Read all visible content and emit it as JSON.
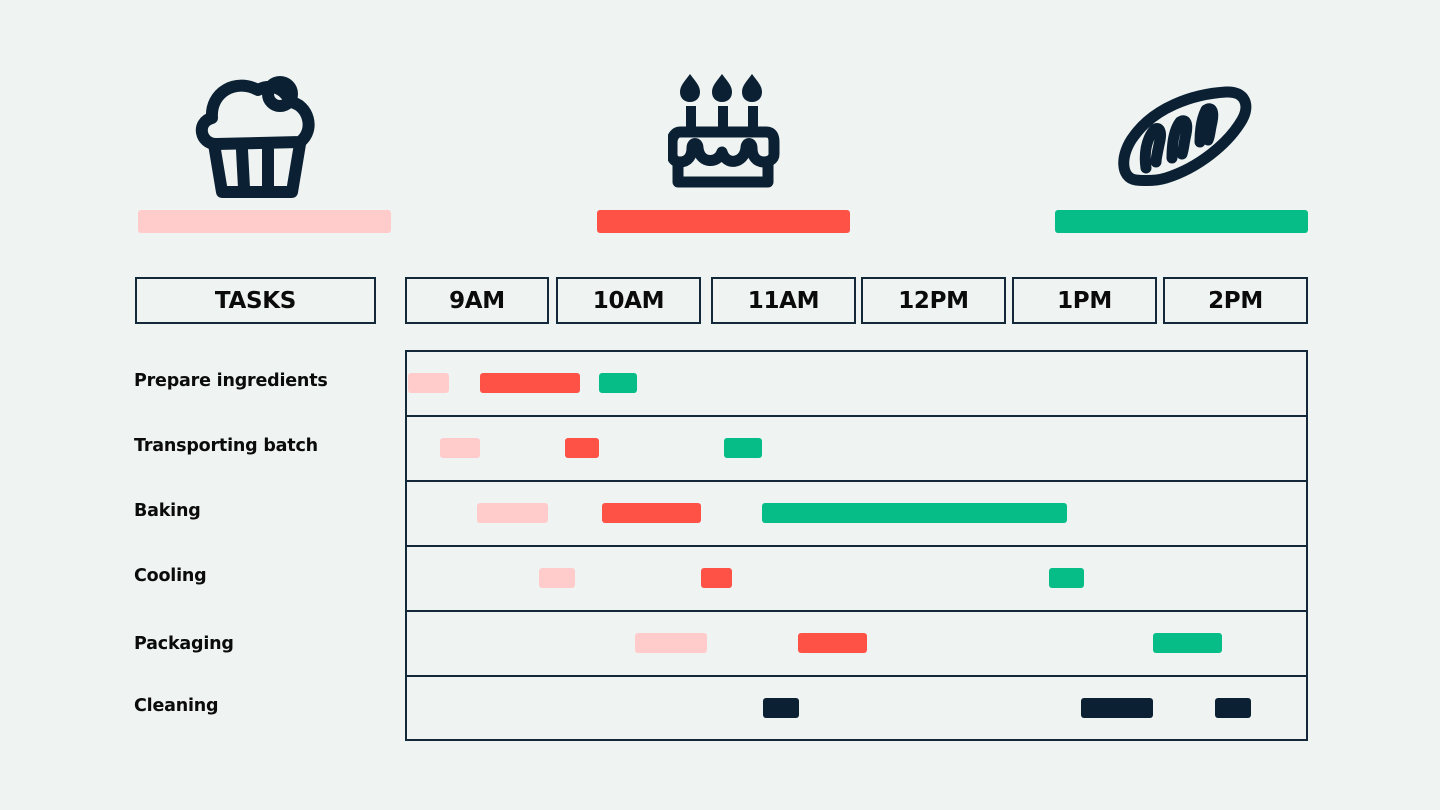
{
  "colors": {
    "background": "#eff3f2",
    "outline": "#13293a",
    "cupcake": "#ffcccb",
    "cake": "#ff5247",
    "bread": "#06bd88",
    "cleaning": "#0b2133"
  },
  "legend": [
    {
      "icon": "cupcake-icon",
      "color": "#ffcccb",
      "series": "Cupcakes"
    },
    {
      "icon": "birthday-cake-icon",
      "color": "#ff5247",
      "series": "Cakes"
    },
    {
      "icon": "bread-icon",
      "color": "#06bd88",
      "series": "Bread"
    }
  ],
  "header": {
    "tasks_label": "TASKS",
    "hours": [
      "9AM",
      "10AM",
      "11AM",
      "12PM",
      "1PM",
      "2PM"
    ]
  },
  "tasks": [
    "Prepare ingredients",
    "Transporting batch",
    "Baking",
    "Cooling",
    "Packaging",
    "Cleaning"
  ],
  "chart_data": {
    "type": "gantt",
    "title": "",
    "xlabel": "",
    "ylabel": "TASKS",
    "x_ticks": [
      "9AM",
      "10AM",
      "11AM",
      "12PM",
      "1PM",
      "2PM"
    ],
    "x_range_hours_from_9am": [
      0,
      6
    ],
    "categories": [
      "Prepare ingredients",
      "Transporting batch",
      "Baking",
      "Cooling",
      "Packaging",
      "Cleaning"
    ],
    "legend_position": "top (icons with color bars)",
    "series": [
      {
        "name": "Cupcakes",
        "color": "#ffcccb",
        "bars": [
          {
            "task": "Prepare ingredients",
            "start": 0.02,
            "end": 0.29
          },
          {
            "task": "Transporting batch",
            "start": 0.23,
            "end": 0.5
          },
          {
            "task": "Baking",
            "start": 0.48,
            "end": 0.95
          },
          {
            "task": "Cooling",
            "start": 0.89,
            "end": 1.13
          },
          {
            "task": "Packaging",
            "start": 1.53,
            "end": 2.01
          }
        ]
      },
      {
        "name": "Cakes",
        "color": "#ff5247",
        "bars": [
          {
            "task": "Prepare ingredients",
            "start": 0.5,
            "end": 1.16
          },
          {
            "task": "Transporting batch",
            "start": 1.06,
            "end": 1.29
          },
          {
            "task": "Baking",
            "start": 1.31,
            "end": 1.97
          },
          {
            "task": "Cooling",
            "start": 1.97,
            "end": 2.17
          },
          {
            "task": "Packaging",
            "start": 2.61,
            "end": 3.07
          }
        ]
      },
      {
        "name": "Bread",
        "color": "#06bd88",
        "bars": [
          {
            "task": "Prepare ingredients",
            "start": 1.29,
            "end": 1.54
          },
          {
            "task": "Transporting batch",
            "start": 2.12,
            "end": 2.37
          },
          {
            "task": "Baking",
            "start": 2.37,
            "end": 4.4
          },
          {
            "task": "Cooling",
            "start": 4.28,
            "end": 4.51
          },
          {
            "task": "Packaging",
            "start": 4.97,
            "end": 5.43
          }
        ]
      },
      {
        "name": "Cleaning",
        "color": "#0b2133",
        "bars": [
          {
            "task": "Cleaning",
            "start": 2.38,
            "end": 2.62
          },
          {
            "task": "Cleaning",
            "start": 4.49,
            "end": 4.97
          },
          {
            "task": "Cleaning",
            "start": 5.38,
            "end": 5.62
          }
        ]
      }
    ]
  }
}
